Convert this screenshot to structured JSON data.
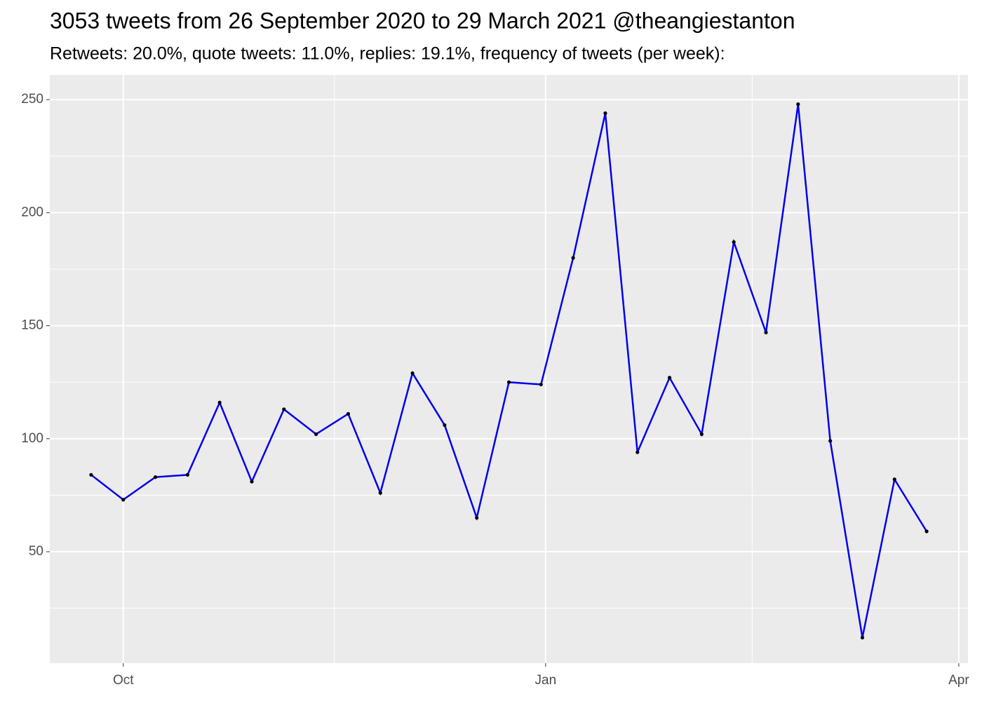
{
  "chart_data": {
    "type": "line",
    "title": "3053 tweets from 26 September 2020 to 29 March 2021 @theangiestanton",
    "subtitle": "Retweets: 20.0%, quote tweets: 11.0%, replies: 19.1%, frequency of tweets (per week):",
    "x": [
      "2020-09-24",
      "2020-10-01",
      "2020-10-08",
      "2020-10-15",
      "2020-10-22",
      "2020-10-29",
      "2020-11-05",
      "2020-11-12",
      "2020-11-19",
      "2020-11-26",
      "2020-12-03",
      "2020-12-10",
      "2020-12-17",
      "2020-12-24",
      "2020-12-31",
      "2021-01-07",
      "2021-01-14",
      "2021-01-21",
      "2021-01-28",
      "2021-02-04",
      "2021-02-11",
      "2021-02-18",
      "2021-02-25",
      "2021-03-04",
      "2021-03-11",
      "2021-03-18",
      "2021-03-25"
    ],
    "values": [
      84,
      73,
      83,
      84,
      116,
      81,
      113,
      102,
      111,
      76,
      129,
      106,
      65,
      125,
      124,
      180,
      244,
      94,
      127,
      102,
      187,
      147,
      248,
      99,
      12,
      82,
      59
    ],
    "color": "#0000ee",
    "point_color": "#000000",
    "xlim": [
      "2020-09-15",
      "2021-04-03"
    ],
    "xticks": [
      {
        "value": "2020-10-01",
        "label": "Oct"
      },
      {
        "value": "2021-01-01",
        "label": "Jan"
      },
      {
        "value": "2021-04-01",
        "label": "Apr"
      }
    ],
    "ylim": [
      0.7,
      260.9
    ],
    "yticks": [
      50,
      100,
      150,
      200,
      250
    ],
    "grid": true
  }
}
